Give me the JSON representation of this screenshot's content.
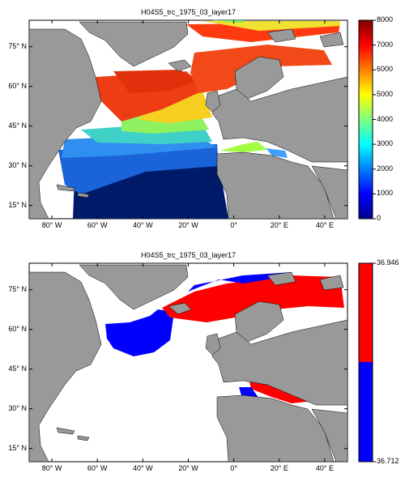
{
  "chart_data": [
    {
      "type": "heatmap",
      "title": "H04S5_trc_1975_03_layer17",
      "x_ticks": [
        "80° W",
        "60° W",
        "40° W",
        "20° W",
        "0°",
        "20° E",
        "40° E"
      ],
      "x_values": [
        -80,
        -60,
        -40,
        -20,
        0,
        20,
        40
      ],
      "y_ticks": [
        "75° N",
        "60° N",
        "45° N",
        "30° N",
        "15° N"
      ],
      "y_values": [
        75,
        60,
        45,
        30,
        15
      ],
      "xlim": [
        -90,
        50
      ],
      "ylim": [
        10,
        85
      ],
      "colorbar": {
        "colormap": "jet",
        "range": [
          0,
          8000
        ],
        "ticks": [
          "0",
          "1000",
          "2000",
          "3000",
          "4000",
          "5000",
          "6000",
          "7000",
          "8000"
        ]
      },
      "colors": {
        "land": "#999999",
        "ocean_no_data": "#ffffff"
      }
    },
    {
      "type": "heatmap",
      "title": "H04S5_trc_1975_03_layer17",
      "x_ticks": [
        "80° W",
        "60° W",
        "40° W",
        "20° W",
        "0°",
        "20° E",
        "40° E"
      ],
      "x_values": [
        -80,
        -60,
        -40,
        -20,
        0,
        20,
        40
      ],
      "y_ticks": [
        "75° N",
        "60° N",
        "45° N",
        "30° N",
        "15° N"
      ],
      "y_values": [
        75,
        60,
        45,
        30,
        15
      ],
      "xlim": [
        -90,
        50
      ],
      "ylim": [
        10,
        85
      ],
      "colorbar": {
        "colormap": "two-class",
        "range": [
          36.712,
          36.946
        ],
        "ticks": [
          "36.946",
          "36.712"
        ],
        "classes": [
          "#0000ff",
          "#ff0000"
        ]
      },
      "colors": {
        "land": "#999999",
        "ocean_no_data": "#ffffff"
      }
    }
  ]
}
